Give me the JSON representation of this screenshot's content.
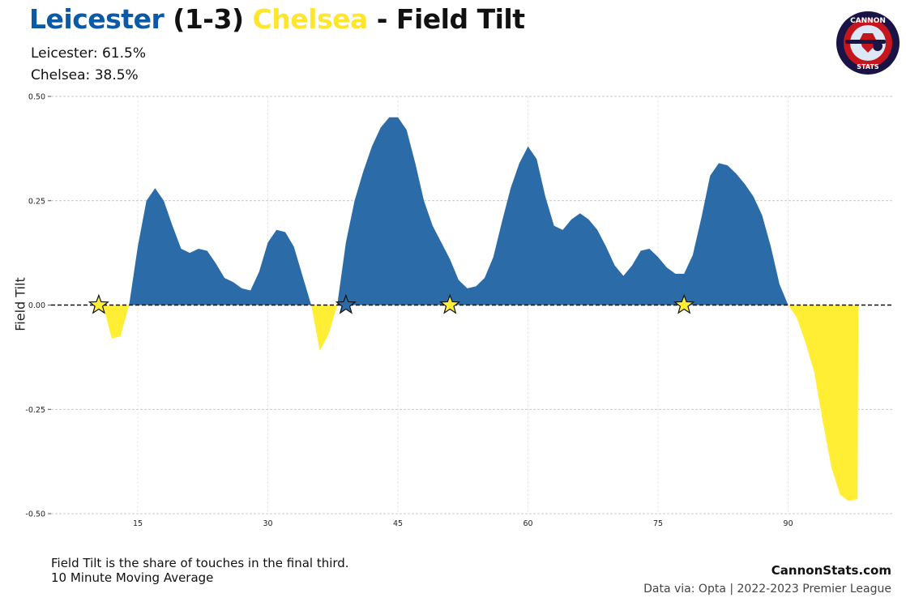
{
  "header": {
    "home_team": "Leicester",
    "score": "(1-3)",
    "away_team": "Chelsea",
    "title_suffix": "- Field Tilt",
    "home_share": "Leicester: 61.5%",
    "away_share": "Chelsea: 38.5%"
  },
  "logo": {
    "top_text": "CANNON",
    "bottom_text": "STATS"
  },
  "footer": {
    "note_line1": "Field Tilt is the share of touches in the final third.",
    "note_line2": "10 Minute Moving Average",
    "site": "CannonStats.com",
    "source": "Data via: Opta | 2022-2023 Premier League"
  },
  "colors": {
    "home": "#2b6ca8",
    "away": "#ffee33",
    "home_title": "#0a5aa8",
    "away_title": "#ffe52c"
  },
  "chart_data": {
    "type": "area",
    "title": "Leicester (1-3) Chelsea - Field Tilt",
    "xlabel": "",
    "ylabel": "Field Tilt",
    "xlim": [
      5,
      102
    ],
    "ylim": [
      -0.5,
      0.5
    ],
    "x_ticks": [
      15,
      30,
      45,
      60,
      75,
      90
    ],
    "y_ticks": [
      -0.5,
      -0.25,
      0.0,
      0.25,
      0.5
    ],
    "y_tick_labels": [
      "-0.50",
      "-0.25",
      "0.00",
      "0.25",
      "0.50"
    ],
    "grid": true,
    "baseline": 0,
    "series": [
      {
        "name": "Leicester",
        "values": [
          [
            10,
            0
          ],
          [
            11,
            0
          ],
          [
            12,
            -0.08
          ],
          [
            13,
            -0.075
          ],
          [
            14,
            0
          ],
          [
            15,
            0.14
          ],
          [
            16,
            0.25
          ],
          [
            17,
            0.28
          ],
          [
            18,
            0.25
          ],
          [
            19,
            0.19
          ],
          [
            20,
            0.135
          ],
          [
            21,
            0.125
          ],
          [
            22,
            0.135
          ],
          [
            23,
            0.13
          ],
          [
            24,
            0.1
          ],
          [
            25,
            0.065
          ],
          [
            26,
            0.055
          ],
          [
            27,
            0.04
          ],
          [
            28,
            0.035
          ],
          [
            29,
            0.08
          ],
          [
            30,
            0.15
          ],
          [
            31,
            0.18
          ],
          [
            32,
            0.175
          ],
          [
            33,
            0.14
          ],
          [
            34,
            0.07
          ],
          [
            35,
            0
          ],
          [
            36,
            -0.11
          ],
          [
            37,
            -0.07
          ],
          [
            38,
            0
          ],
          [
            39,
            0.15
          ],
          [
            40,
            0.25
          ],
          [
            41,
            0.32
          ],
          [
            42,
            0.38
          ],
          [
            43,
            0.425
          ],
          [
            44,
            0.45
          ],
          [
            45,
            0.45
          ],
          [
            46,
            0.42
          ],
          [
            47,
            0.34
          ],
          [
            48,
            0.25
          ],
          [
            49,
            0.19
          ],
          [
            50,
            0.15
          ],
          [
            51,
            0.11
          ],
          [
            52,
            0.06
          ],
          [
            53,
            0.04
          ],
          [
            54,
            0.045
          ],
          [
            55,
            0.065
          ],
          [
            56,
            0.115
          ],
          [
            57,
            0.2
          ],
          [
            58,
            0.28
          ],
          [
            59,
            0.34
          ],
          [
            60,
            0.38
          ],
          [
            61,
            0.35
          ],
          [
            62,
            0.26
          ],
          [
            63,
            0.19
          ],
          [
            64,
            0.18
          ],
          [
            65,
            0.205
          ],
          [
            66,
            0.22
          ],
          [
            67,
            0.205
          ],
          [
            68,
            0.18
          ],
          [
            69,
            0.14
          ],
          [
            70,
            0.095
          ],
          [
            71,
            0.07
          ],
          [
            72,
            0.095
          ],
          [
            73,
            0.13
          ],
          [
            74,
            0.135
          ],
          [
            75,
            0.115
          ],
          [
            76,
            0.09
          ],
          [
            77,
            0.075
          ],
          [
            78,
            0.075
          ],
          [
            79,
            0.12
          ],
          [
            80,
            0.21
          ],
          [
            81,
            0.31
          ],
          [
            82,
            0.34
          ],
          [
            83,
            0.335
          ],
          [
            84,
            0.315
          ],
          [
            85,
            0.29
          ],
          [
            86,
            0.26
          ],
          [
            87,
            0.215
          ],
          [
            88,
            0.14
          ],
          [
            89,
            0.05
          ],
          [
            90,
            0
          ],
          [
            91,
            -0.03
          ],
          [
            92,
            -0.09
          ],
          [
            93,
            -0.16
          ],
          [
            94,
            -0.28
          ],
          [
            95,
            -0.39
          ],
          [
            96,
            -0.455
          ],
          [
            97,
            -0.47
          ],
          [
            98,
            -0.465
          ],
          [
            98.1,
            0
          ]
        ]
      }
    ],
    "goals": [
      {
        "minute": 10.5,
        "team": "Chelsea"
      },
      {
        "minute": 39,
        "team": "Leicester"
      },
      {
        "minute": 51,
        "team": "Chelsea"
      },
      {
        "minute": 78,
        "team": "Chelsea"
      }
    ]
  }
}
